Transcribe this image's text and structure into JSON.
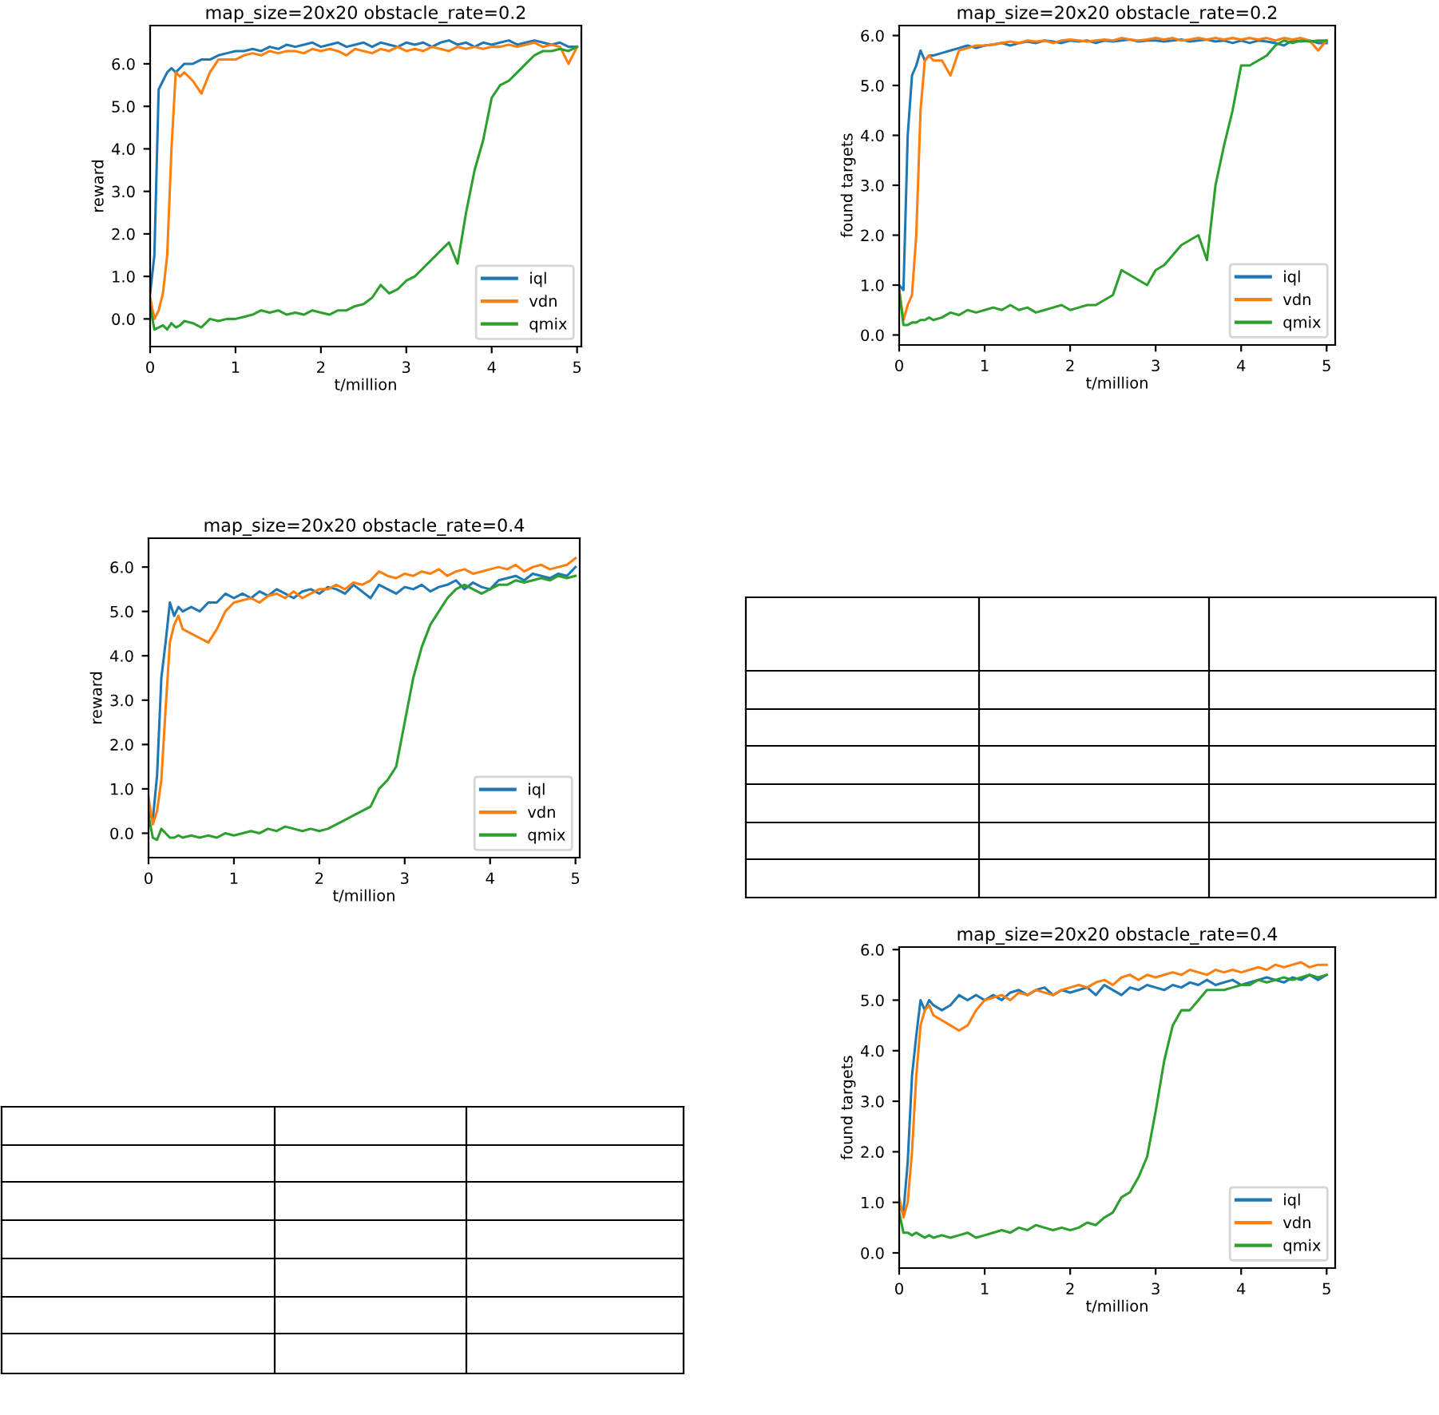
{
  "chart_data": [
    {
      "type": "line",
      "title": "map_size=20x20 obstacle_rate=0.2",
      "xlabel": "t/million",
      "ylabel": "reward",
      "legend": "lower right",
      "grid": false,
      "x": [
        0,
        0.05,
        0.1,
        0.15,
        0.2,
        0.25,
        0.3,
        0.35,
        0.4,
        0.5,
        0.6,
        0.7,
        0.8,
        0.9,
        1.0,
        1.1,
        1.2,
        1.3,
        1.4,
        1.5,
        1.6,
        1.7,
        1.8,
        1.9,
        2.0,
        2.1,
        2.2,
        2.3,
        2.4,
        2.5,
        2.6,
        2.7,
        2.8,
        2.9,
        3.0,
        3.1,
        3.2,
        3.3,
        3.4,
        3.5,
        3.6,
        3.7,
        3.8,
        3.9,
        4.0,
        4.1,
        4.2,
        4.3,
        4.4,
        4.5,
        4.6,
        4.7,
        4.8,
        4.9,
        5.0
      ],
      "xlim": [
        0,
        5.05
      ],
      "xticks": [
        0,
        1,
        2,
        3,
        4,
        5
      ],
      "ylim": [
        -0.65,
        6.9
      ],
      "yticks": [
        {
          "value": 0,
          "label": "0.0"
        },
        {
          "value": 1,
          "label": "1.0"
        },
        {
          "value": 2,
          "label": "2.0"
        },
        {
          "value": 3,
          "label": "3.0"
        },
        {
          "value": 4,
          "label": "4.0"
        },
        {
          "value": 5,
          "label": "5.0"
        },
        {
          "value": 6,
          "label": "6.0"
        }
      ],
      "series": [
        {
          "name": "iql",
          "color": "#1f77b4",
          "values": [
            0.6,
            1.5,
            5.4,
            5.6,
            5.8,
            5.9,
            5.8,
            5.9,
            6.0,
            6.0,
            6.1,
            6.1,
            6.2,
            6.25,
            6.3,
            6.3,
            6.35,
            6.3,
            6.4,
            6.35,
            6.45,
            6.4,
            6.45,
            6.5,
            6.4,
            6.45,
            6.5,
            6.4,
            6.45,
            6.5,
            6.4,
            6.5,
            6.45,
            6.4,
            6.5,
            6.45,
            6.5,
            6.4,
            6.5,
            6.55,
            6.45,
            6.5,
            6.4,
            6.5,
            6.45,
            6.5,
            6.55,
            6.45,
            6.5,
            6.55,
            6.5,
            6.45,
            6.5,
            6.4,
            6.4
          ]
        },
        {
          "name": "vdn",
          "color": "#ff7f0e",
          "values": [
            0.5,
            0.0,
            0.2,
            0.6,
            1.5,
            4.0,
            5.8,
            5.7,
            5.8,
            5.6,
            5.3,
            5.8,
            6.1,
            6.1,
            6.1,
            6.2,
            6.25,
            6.2,
            6.3,
            6.25,
            6.3,
            6.3,
            6.25,
            6.35,
            6.3,
            6.35,
            6.3,
            6.2,
            6.35,
            6.3,
            6.25,
            6.35,
            6.3,
            6.4,
            6.3,
            6.35,
            6.3,
            6.4,
            6.35,
            6.3,
            6.4,
            6.35,
            6.4,
            6.35,
            6.4,
            6.4,
            6.45,
            6.4,
            6.45,
            6.5,
            6.4,
            6.45,
            6.4,
            6.0,
            6.4
          ]
        },
        {
          "name": "qmix",
          "color": "#2ca02c",
          "values": [
            0.3,
            -0.25,
            -0.2,
            -0.15,
            -0.25,
            -0.1,
            -0.2,
            -0.15,
            -0.05,
            -0.1,
            -0.2,
            0.0,
            -0.05,
            0.0,
            0.0,
            0.05,
            0.1,
            0.2,
            0.15,
            0.2,
            0.1,
            0.15,
            0.1,
            0.2,
            0.15,
            0.1,
            0.2,
            0.2,
            0.3,
            0.35,
            0.5,
            0.8,
            0.6,
            0.7,
            0.9,
            1.0,
            1.2,
            1.4,
            1.6,
            1.8,
            1.3,
            2.5,
            3.5,
            4.2,
            5.2,
            5.5,
            5.6,
            5.8,
            6.0,
            6.2,
            6.3,
            6.3,
            6.35,
            6.3,
            6.4
          ]
        }
      ]
    },
    {
      "type": "line",
      "title": "map_size=20x20 obstacle_rate=0.2",
      "xlabel": "t/million",
      "ylabel": "found targets",
      "legend": "lower right",
      "grid": false,
      "x": [
        0,
        0.05,
        0.1,
        0.15,
        0.2,
        0.25,
        0.3,
        0.35,
        0.4,
        0.5,
        0.6,
        0.7,
        0.8,
        0.9,
        1.0,
        1.1,
        1.2,
        1.3,
        1.4,
        1.5,
        1.6,
        1.7,
        1.8,
        1.9,
        2.0,
        2.1,
        2.2,
        2.3,
        2.4,
        2.5,
        2.6,
        2.7,
        2.8,
        2.9,
        3.0,
        3.1,
        3.2,
        3.3,
        3.4,
        3.5,
        3.6,
        3.7,
        3.8,
        3.9,
        4.0,
        4.1,
        4.2,
        4.3,
        4.4,
        4.5,
        4.6,
        4.7,
        4.8,
        4.9,
        5.0
      ],
      "xlim": [
        0,
        5.1
      ],
      "xticks": [
        0,
        1,
        2,
        3,
        4,
        5
      ],
      "ylim": [
        -0.2,
        6.2
      ],
      "yticks": [
        {
          "value": 0,
          "label": "0.0"
        },
        {
          "value": 1,
          "label": "1.0"
        },
        {
          "value": 2,
          "label": "2.0"
        },
        {
          "value": 3,
          "label": "3.0"
        },
        {
          "value": 4,
          "label": "4.0"
        },
        {
          "value": 5,
          "label": "5.0"
        },
        {
          "value": 6,
          "label": "6.0"
        }
      ],
      "series": [
        {
          "name": "iql",
          "color": "#1f77b4",
          "values": [
            1.0,
            0.9,
            4.0,
            5.2,
            5.4,
            5.7,
            5.5,
            5.6,
            5.6,
            5.65,
            5.7,
            5.75,
            5.8,
            5.75,
            5.8,
            5.82,
            5.85,
            5.8,
            5.85,
            5.88,
            5.85,
            5.9,
            5.88,
            5.85,
            5.9,
            5.88,
            5.9,
            5.85,
            5.9,
            5.88,
            5.9,
            5.92,
            5.88,
            5.9,
            5.9,
            5.88,
            5.9,
            5.92,
            5.88,
            5.9,
            5.92,
            5.88,
            5.9,
            5.85,
            5.9,
            5.85,
            5.9,
            5.88,
            5.85,
            5.8,
            5.9,
            5.88,
            5.9,
            5.85,
            5.85
          ]
        },
        {
          "name": "vdn",
          "color": "#ff7f0e",
          "values": [
            0.9,
            0.3,
            0.6,
            0.8,
            2.0,
            4.5,
            5.5,
            5.6,
            5.5,
            5.5,
            5.2,
            5.7,
            5.75,
            5.8,
            5.8,
            5.82,
            5.85,
            5.88,
            5.85,
            5.9,
            5.88,
            5.9,
            5.85,
            5.9,
            5.92,
            5.9,
            5.88,
            5.9,
            5.92,
            5.9,
            5.95,
            5.92,
            5.9,
            5.92,
            5.95,
            5.92,
            5.95,
            5.9,
            5.92,
            5.95,
            5.92,
            5.95,
            5.92,
            5.95,
            5.92,
            5.95,
            5.92,
            5.95,
            5.9,
            5.95,
            5.92,
            5.95,
            5.9,
            5.7,
            5.9
          ]
        },
        {
          "name": "qmix",
          "color": "#2ca02c",
          "values": [
            0.9,
            0.2,
            0.2,
            0.25,
            0.25,
            0.3,
            0.3,
            0.35,
            0.3,
            0.35,
            0.45,
            0.4,
            0.5,
            0.45,
            0.5,
            0.55,
            0.5,
            0.6,
            0.5,
            0.55,
            0.45,
            0.5,
            0.55,
            0.6,
            0.5,
            0.55,
            0.6,
            0.6,
            0.7,
            0.8,
            1.3,
            1.2,
            1.1,
            1.0,
            1.3,
            1.4,
            1.6,
            1.8,
            1.9,
            2.0,
            1.5,
            3.0,
            3.8,
            4.5,
            5.4,
            5.4,
            5.5,
            5.6,
            5.8,
            5.9,
            5.85,
            5.9,
            5.88,
            5.9,
            5.9
          ]
        }
      ]
    },
    {
      "type": "line",
      "title": "map_size=20x20 obstacle_rate=0.4",
      "xlabel": "t/million",
      "ylabel": "reward",
      "legend": "lower right",
      "grid": false,
      "x": [
        0,
        0.05,
        0.1,
        0.15,
        0.2,
        0.25,
        0.3,
        0.35,
        0.4,
        0.5,
        0.6,
        0.7,
        0.8,
        0.9,
        1.0,
        1.1,
        1.2,
        1.3,
        1.4,
        1.5,
        1.6,
        1.7,
        1.8,
        1.9,
        2.0,
        2.1,
        2.2,
        2.3,
        2.4,
        2.5,
        2.6,
        2.7,
        2.8,
        2.9,
        3.0,
        3.1,
        3.2,
        3.3,
        3.4,
        3.5,
        3.6,
        3.7,
        3.8,
        3.9,
        4.0,
        4.1,
        4.2,
        4.3,
        4.4,
        4.5,
        4.6,
        4.7,
        4.8,
        4.9,
        5.0
      ],
      "xlim": [
        0,
        5.05
      ],
      "xticks": [
        0,
        1,
        2,
        3,
        4,
        5
      ],
      "ylim": [
        -0.55,
        6.65
      ],
      "yticks": [
        {
          "value": 0,
          "label": "0.0"
        },
        {
          "value": 1,
          "label": "1.0"
        },
        {
          "value": 2,
          "label": "2.0"
        },
        {
          "value": 3,
          "label": "3.0"
        },
        {
          "value": 4,
          "label": "4.0"
        },
        {
          "value": 5,
          "label": "5.0"
        },
        {
          "value": 6,
          "label": "6.0"
        }
      ],
      "series": [
        {
          "name": "iql",
          "color": "#1f77b4",
          "values": [
            0.5,
            0.3,
            1.3,
            3.5,
            4.3,
            5.2,
            4.9,
            5.1,
            5.0,
            5.1,
            5.0,
            5.2,
            5.2,
            5.4,
            5.3,
            5.4,
            5.3,
            5.45,
            5.35,
            5.5,
            5.4,
            5.3,
            5.45,
            5.5,
            5.4,
            5.55,
            5.5,
            5.4,
            5.6,
            5.45,
            5.3,
            5.6,
            5.5,
            5.4,
            5.55,
            5.5,
            5.6,
            5.45,
            5.55,
            5.6,
            5.7,
            5.5,
            5.65,
            5.55,
            5.5,
            5.7,
            5.75,
            5.8,
            5.7,
            5.85,
            5.8,
            5.75,
            5.85,
            5.8,
            6.0
          ]
        },
        {
          "name": "vdn",
          "color": "#ff7f0e",
          "values": [
            0.8,
            0.2,
            0.5,
            1.2,
            2.8,
            4.3,
            4.7,
            4.9,
            4.6,
            4.5,
            4.4,
            4.3,
            4.6,
            5.0,
            5.2,
            5.25,
            5.3,
            5.2,
            5.35,
            5.4,
            5.3,
            5.45,
            5.3,
            5.4,
            5.5,
            5.5,
            5.6,
            5.5,
            5.65,
            5.6,
            5.7,
            5.9,
            5.8,
            5.75,
            5.85,
            5.8,
            5.9,
            5.85,
            5.95,
            5.8,
            5.9,
            5.95,
            5.85,
            5.9,
            5.95,
            6.0,
            5.95,
            6.05,
            5.9,
            6.0,
            6.05,
            5.95,
            6.0,
            6.05,
            6.2
          ]
        },
        {
          "name": "qmix",
          "color": "#2ca02c",
          "values": [
            0.4,
            -0.1,
            -0.15,
            0.1,
            0.0,
            -0.1,
            -0.1,
            -0.05,
            -0.1,
            -0.05,
            -0.1,
            -0.05,
            -0.1,
            0.0,
            -0.05,
            0.0,
            0.05,
            0.0,
            0.1,
            0.05,
            0.15,
            0.1,
            0.05,
            0.1,
            0.05,
            0.1,
            0.2,
            0.3,
            0.4,
            0.5,
            0.6,
            1.0,
            1.2,
            1.5,
            2.5,
            3.5,
            4.2,
            4.7,
            5.0,
            5.3,
            5.5,
            5.6,
            5.5,
            5.4,
            5.5,
            5.6,
            5.6,
            5.7,
            5.65,
            5.7,
            5.75,
            5.7,
            5.8,
            5.75,
            5.8
          ]
        }
      ]
    },
    {
      "type": "line",
      "title": "map_size=20x20 obstacle_rate=0.4",
      "xlabel": "t/million",
      "ylabel": "found targets",
      "legend": "lower right",
      "grid": false,
      "x": [
        0,
        0.05,
        0.1,
        0.15,
        0.2,
        0.25,
        0.3,
        0.35,
        0.4,
        0.5,
        0.6,
        0.7,
        0.8,
        0.9,
        1.0,
        1.1,
        1.2,
        1.3,
        1.4,
        1.5,
        1.6,
        1.7,
        1.8,
        1.9,
        2.0,
        2.1,
        2.2,
        2.3,
        2.4,
        2.5,
        2.6,
        2.7,
        2.8,
        2.9,
        3.0,
        3.1,
        3.2,
        3.3,
        3.4,
        3.5,
        3.6,
        3.7,
        3.8,
        3.9,
        4.0,
        4.1,
        4.2,
        4.3,
        4.4,
        4.5,
        4.6,
        4.7,
        4.8,
        4.9,
        5.0
      ],
      "xlim": [
        0,
        5.1
      ],
      "xticks": [
        0,
        1,
        2,
        3,
        4,
        5
      ],
      "ylim": [
        -0.3,
        6.05
      ],
      "yticks": [
        {
          "value": 0,
          "label": "0.0"
        },
        {
          "value": 1,
          "label": "1.0"
        },
        {
          "value": 2,
          "label": "2.0"
        },
        {
          "value": 3,
          "label": "3.0"
        },
        {
          "value": 4,
          "label": "4.0"
        },
        {
          "value": 5,
          "label": "5.0"
        },
        {
          "value": 6,
          "label": "6.0"
        }
      ],
      "series": [
        {
          "name": "iql",
          "color": "#1f77b4",
          "values": [
            0.9,
            0.8,
            1.8,
            3.5,
            4.3,
            5.0,
            4.8,
            5.0,
            4.9,
            4.8,
            4.9,
            5.1,
            5.0,
            5.1,
            5.0,
            5.1,
            5.0,
            5.15,
            5.2,
            5.1,
            5.2,
            5.25,
            5.1,
            5.2,
            5.15,
            5.2,
            5.25,
            5.1,
            5.3,
            5.2,
            5.1,
            5.25,
            5.2,
            5.3,
            5.25,
            5.2,
            5.3,
            5.25,
            5.35,
            5.3,
            5.4,
            5.3,
            5.35,
            5.4,
            5.3,
            5.35,
            5.4,
            5.45,
            5.4,
            5.35,
            5.45,
            5.4,
            5.5,
            5.4,
            5.5
          ]
        },
        {
          "name": "vdn",
          "color": "#ff7f0e",
          "values": [
            1.1,
            0.7,
            1.0,
            2.0,
            3.5,
            4.5,
            4.8,
            4.9,
            4.7,
            4.6,
            4.5,
            4.4,
            4.5,
            4.8,
            5.0,
            5.05,
            5.1,
            5.0,
            5.15,
            5.1,
            5.2,
            5.15,
            5.1,
            5.2,
            5.25,
            5.3,
            5.25,
            5.35,
            5.4,
            5.3,
            5.45,
            5.5,
            5.4,
            5.5,
            5.45,
            5.5,
            5.55,
            5.5,
            5.6,
            5.55,
            5.5,
            5.6,
            5.55,
            5.6,
            5.55,
            5.6,
            5.65,
            5.6,
            5.7,
            5.65,
            5.7,
            5.75,
            5.65,
            5.7,
            5.7
          ]
        },
        {
          "name": "qmix",
          "color": "#2ca02c",
          "values": [
            0.8,
            0.4,
            0.4,
            0.35,
            0.4,
            0.35,
            0.3,
            0.35,
            0.3,
            0.35,
            0.3,
            0.35,
            0.4,
            0.3,
            0.35,
            0.4,
            0.45,
            0.4,
            0.5,
            0.45,
            0.55,
            0.5,
            0.45,
            0.5,
            0.45,
            0.5,
            0.6,
            0.55,
            0.7,
            0.8,
            1.1,
            1.2,
            1.5,
            1.9,
            2.8,
            3.8,
            4.5,
            4.8,
            4.8,
            5.0,
            5.2,
            5.2,
            5.2,
            5.25,
            5.3,
            5.3,
            5.4,
            5.35,
            5.4,
            5.45,
            5.4,
            5.45,
            5.5,
            5.45,
            5.5
          ]
        }
      ]
    }
  ]
}
